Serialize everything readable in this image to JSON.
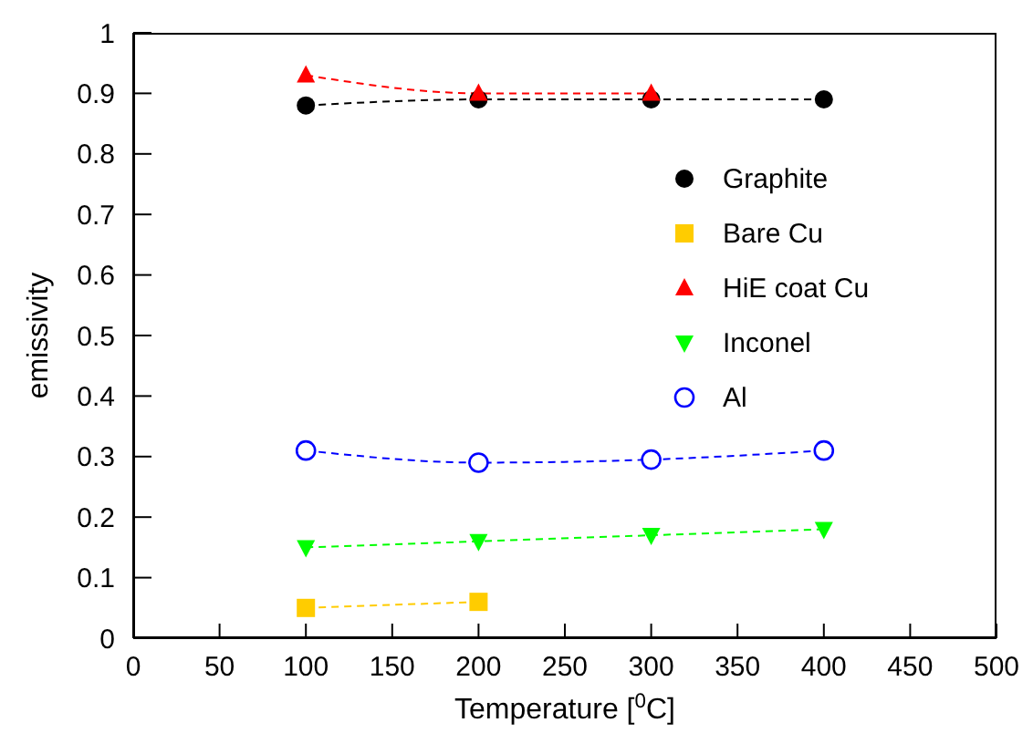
{
  "chart_data": {
    "type": "line",
    "xlabel": "Temperature [$^{0}$C]",
    "ylabel": "emissivity",
    "x": [
      100,
      200,
      300,
      400
    ],
    "series": [
      {
        "name": "Graphite",
        "color": "#000000",
        "marker": "circle",
        "values": [
          0.88,
          0.89,
          0.89,
          0.89
        ]
      },
      {
        "name": "Bare Cu",
        "color": "#ffcc00",
        "marker": "square",
        "values": [
          0.05,
          0.06,
          null,
          null
        ]
      },
      {
        "name": "HiE coat Cu",
        "color": "#ff0000",
        "marker": "triangle",
        "values": [
          0.93,
          0.9,
          0.9,
          null
        ]
      },
      {
        "name": "Inconel",
        "color": "#00ff00",
        "marker": "triangle-down",
        "values": [
          0.15,
          0.16,
          0.17,
          0.18
        ]
      },
      {
        "name": "Al",
        "color": "#0000ff",
        "marker": "circle-open",
        "values": [
          0.31,
          0.29,
          0.295,
          0.31
        ]
      }
    ],
    "xlim": [
      0,
      500
    ],
    "xticks": [
      0,
      50,
      100,
      150,
      200,
      250,
      300,
      350,
      400,
      450,
      500
    ],
    "ylim": [
      0,
      1
    ],
    "yticks": [
      0,
      0.1,
      0.2,
      0.3,
      0.4,
      0.5,
      0.6,
      0.7,
      0.8,
      0.9,
      1
    ],
    "grid": false,
    "legend": "right",
    "line_style": "dashed"
  }
}
